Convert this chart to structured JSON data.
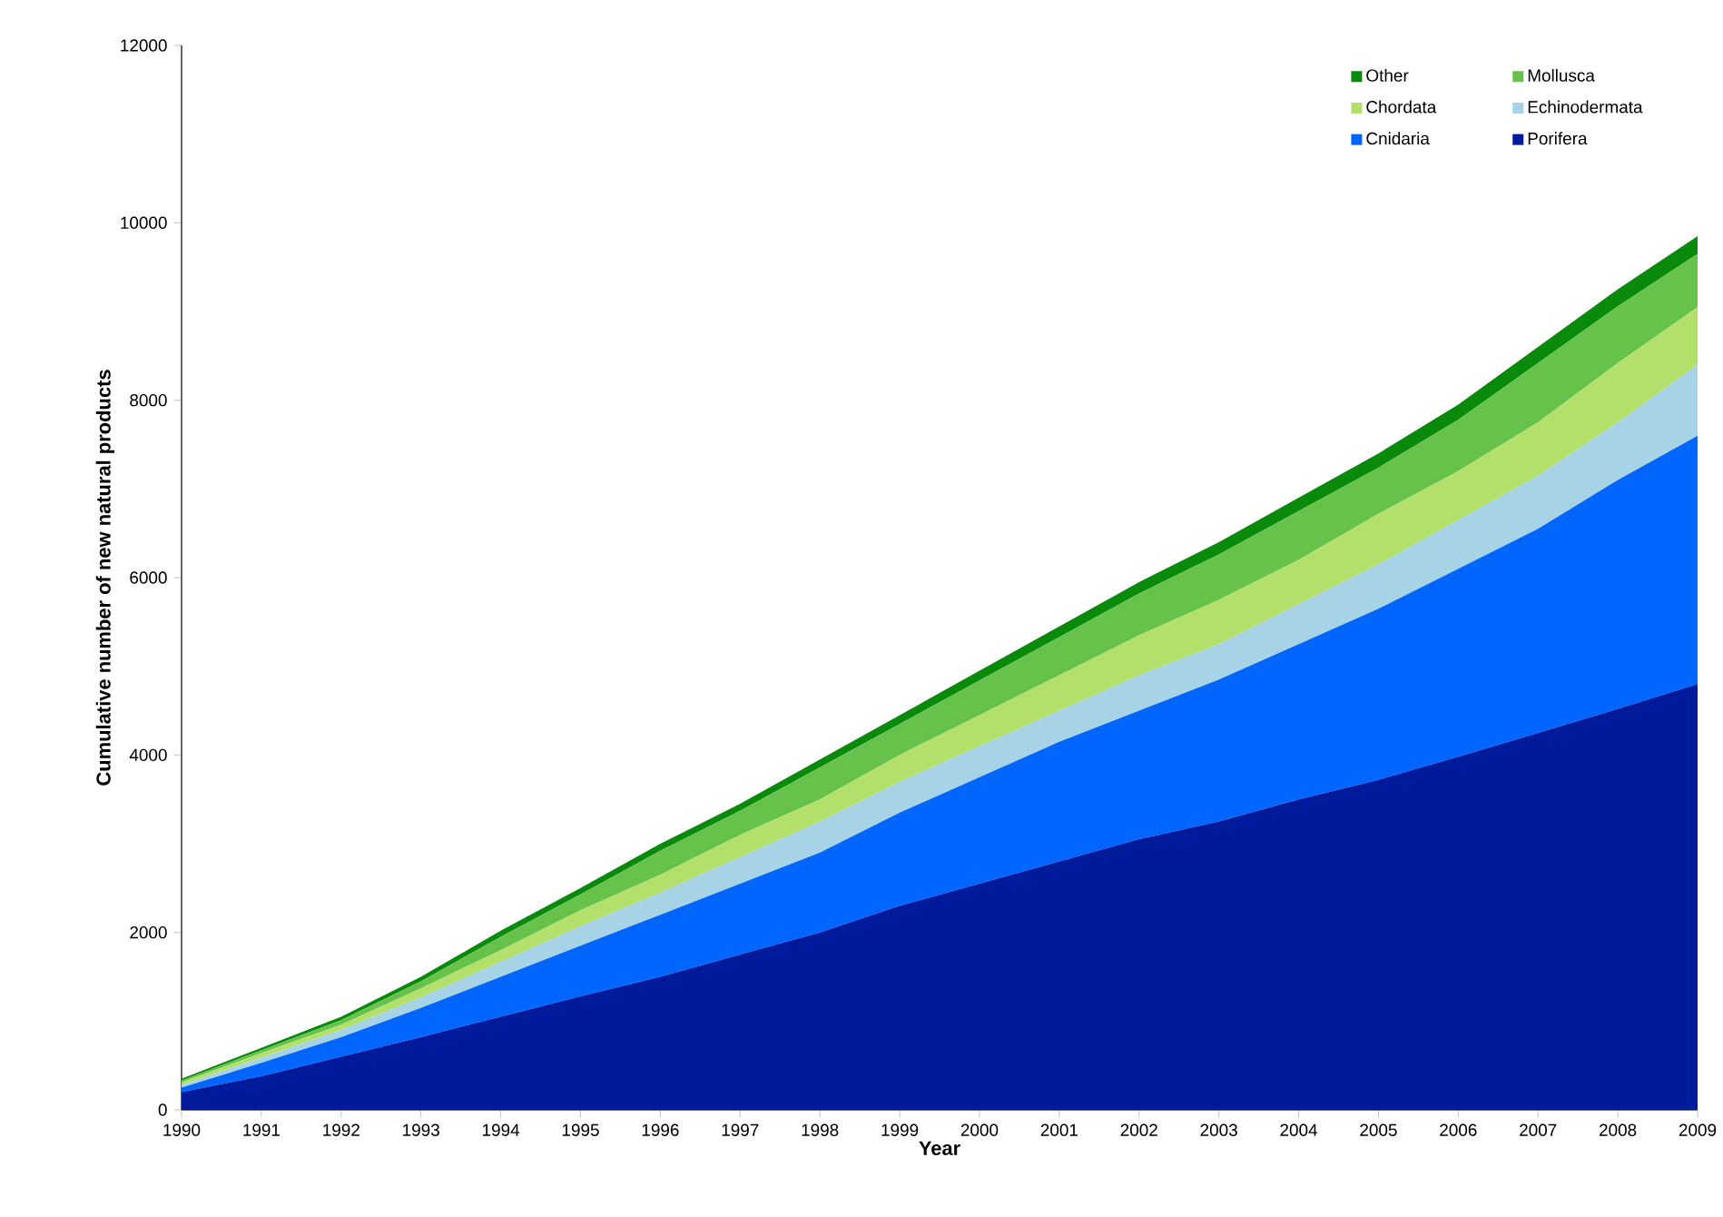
{
  "chart_data": {
    "type": "area",
    "stacked": true,
    "xlabel": "Year",
    "ylabel": "Cumulative number of new natural products",
    "x": [
      1990,
      1991,
      1992,
      1993,
      1994,
      1995,
      1996,
      1997,
      1998,
      1999,
      2000,
      2001,
      2002,
      2003,
      2004,
      2005,
      2006,
      2007,
      2008,
      2009
    ],
    "xlim": [
      1990,
      2009
    ],
    "xticks": [
      1990,
      1991,
      1992,
      1993,
      1994,
      1995,
      1996,
      1997,
      1998,
      1999,
      2000,
      2001,
      2002,
      2003,
      2004,
      2005,
      2006,
      2007,
      2008,
      2009
    ],
    "ylim": [
      0,
      12000
    ],
    "yticks": [
      0,
      2000,
      4000,
      6000,
      8000,
      10000,
      12000
    ],
    "grid": false,
    "legend": "top right",
    "series": [
      {
        "name": "Porifera",
        "color": "#001a9c",
        "values": [
          200,
          380,
          600,
          820,
          1050,
          1280,
          1500,
          1750,
          2000,
          2300,
          2550,
          2800,
          3050,
          3250,
          3500,
          3720,
          3980,
          4250,
          4520,
          4800
        ]
      },
      {
        "name": "Cnidaria",
        "color": "#0066ff",
        "values": [
          50,
          150,
          220,
          330,
          450,
          570,
          700,
          800,
          900,
          1050,
          1200,
          1350,
          1450,
          1600,
          1750,
          1930,
          2120,
          2300,
          2580,
          2800
        ]
      },
      {
        "name": "Echinodermata",
        "color": "#a6d4e6",
        "values": [
          30,
          60,
          80,
          120,
          170,
          220,
          250,
          300,
          350,
          350,
          350,
          350,
          400,
          400,
          450,
          500,
          550,
          600,
          650,
          800
        ]
      },
      {
        "name": "Chordata",
        "color": "#b3e06a",
        "values": [
          30,
          50,
          60,
          100,
          130,
          180,
          200,
          250,
          250,
          300,
          350,
          400,
          450,
          500,
          500,
          570,
          550,
          600,
          670,
          650
        ]
      },
      {
        "name": "Mollusca",
        "color": "#66c24a",
        "values": [
          20,
          30,
          50,
          80,
          150,
          180,
          270,
          270,
          360,
          350,
          390,
          430,
          470,
          510,
          550,
          520,
          580,
          670,
          640,
          600
        ]
      },
      {
        "name": "Other",
        "color": "#0a8a0a",
        "values": [
          20,
          30,
          40,
          50,
          70,
          70,
          80,
          80,
          90,
          100,
          110,
          120,
          130,
          140,
          150,
          160,
          170,
          180,
          190,
          200
        ]
      }
    ]
  }
}
